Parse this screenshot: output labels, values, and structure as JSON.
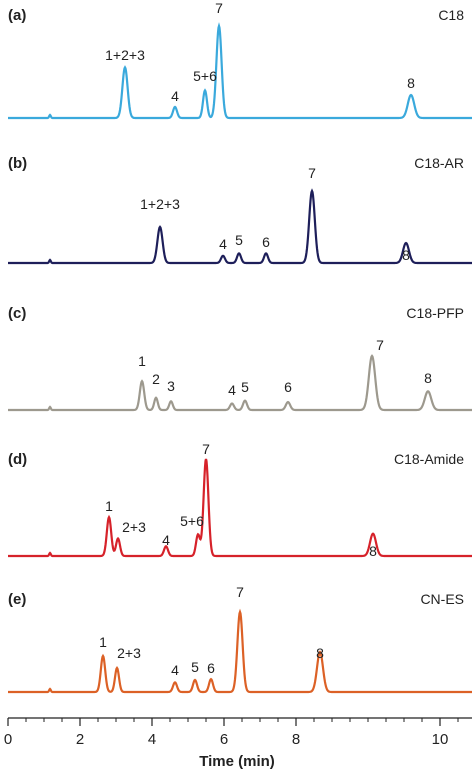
{
  "chart_data": [
    {
      "type": "line",
      "panel_label": "(a)",
      "column_name": "C18",
      "color": "#3aa9dc",
      "peaks": [
        {
          "label": "1+2+3",
          "time": 3.2,
          "height": 0.55
        },
        {
          "label": "4",
          "time": 4.55,
          "height": 0.12
        },
        {
          "label": "5+6",
          "time": 5.4,
          "height": 0.3
        },
        {
          "label": "7",
          "time": 5.8,
          "height": 1.0
        },
        {
          "label": "8",
          "time": 11.3,
          "height": 0.25
        }
      ]
    },
    {
      "type": "line",
      "panel_label": "(b)",
      "column_name": "C18-AR",
      "color": "#1e1f5a",
      "peaks": [
        {
          "label": "1+2+3",
          "time": 4.3,
          "height": 0.45
        },
        {
          "label": "4",
          "time": 5.2,
          "height": 0.09
        },
        {
          "label": "5",
          "time": 5.55,
          "height": 0.12
        },
        {
          "label": "6",
          "time": 6.35,
          "height": 0.12
        },
        {
          "label": "7",
          "time": 7.65,
          "height": 0.9
        },
        {
          "label": "8",
          "time": 10.5,
          "height": 0.25
        }
      ]
    },
    {
      "type": "line",
      "panel_label": "(c)",
      "column_name": "C18-PFP",
      "color": "#9d998e",
      "peaks": [
        {
          "label": "1",
          "time": 3.85,
          "height": 0.4
        },
        {
          "label": "2",
          "time": 4.25,
          "height": 0.17
        },
        {
          "label": "3",
          "time": 4.55,
          "height": 0.12
        },
        {
          "label": "4",
          "time": 6.05,
          "height": 0.09
        },
        {
          "label": "5",
          "time": 6.35,
          "height": 0.13
        },
        {
          "label": "6",
          "time": 7.45,
          "height": 0.11
        },
        {
          "label": "7",
          "time": 9.65,
          "height": 0.75
        },
        {
          "label": "8",
          "time": 10.85,
          "height": 0.26
        }
      ]
    },
    {
      "type": "line",
      "panel_label": "(d)",
      "column_name": "C18-Amide",
      "color": "#d6222a",
      "peaks": [
        {
          "label": "1",
          "time": 2.75,
          "height": 0.4
        },
        {
          "label": "2+3",
          "time": 2.97,
          "height": 0.18
        },
        {
          "label": "4",
          "time": 4.45,
          "height": 0.1
        },
        {
          "label": "5+6",
          "time": 5.4,
          "height": 0.22
        },
        {
          "label": "7",
          "time": 5.6,
          "height": 1.0
        },
        {
          "label": "8",
          "time": 9.5,
          "height": 0.23
        }
      ]
    },
    {
      "type": "line",
      "panel_label": "(e)",
      "column_name": "CN-ES",
      "color": "#dc6126",
      "peaks": [
        {
          "label": "1",
          "time": 2.67,
          "height": 0.45
        },
        {
          "label": "2+3",
          "time": 3.0,
          "height": 0.3
        },
        {
          "label": "4",
          "time": 4.6,
          "height": 0.12
        },
        {
          "label": "5",
          "time": 5.2,
          "height": 0.15
        },
        {
          "label": "6",
          "time": 5.6,
          "height": 0.16
        },
        {
          "label": "7",
          "time": 6.5,
          "height": 1.0
        },
        {
          "label": "8",
          "time": 8.8,
          "height": 0.5
        }
      ]
    }
  ],
  "x_axis": {
    "label": "Time (min)",
    "ticks": [
      0,
      2,
      4,
      6,
      8,
      10
    ]
  }
}
